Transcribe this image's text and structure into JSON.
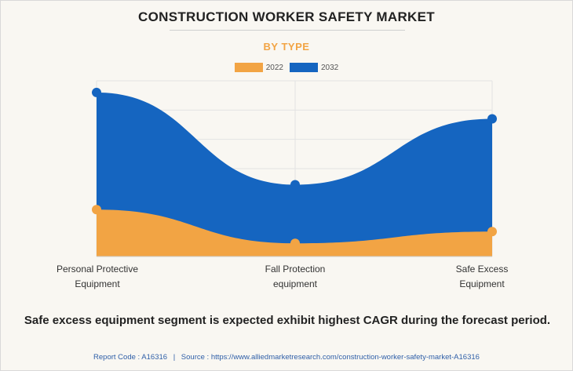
{
  "chart_data": {
    "type": "area",
    "title": "CONSTRUCTION WORKER SAFETY MARKET",
    "subtitle": "BY TYPE",
    "categories": [
      "Personal Protective Equipment",
      "Fall Protection equipment",
      "Safe Excess Equipment"
    ],
    "category_lines": [
      [
        "Personal Protective",
        "Equipment"
      ],
      [
        "Fall Protection",
        "equipment"
      ],
      [
        "Safe Excess",
        "Equipment"
      ]
    ],
    "series": [
      {
        "name": "2022",
        "color": "#f2a444",
        "values": [
          1.6,
          0.45,
          0.85
        ]
      },
      {
        "name": "2032",
        "color": "#1565c0",
        "values": [
          5.6,
          2.45,
          4.7
        ]
      }
    ],
    "ylim": [
      0,
      6
    ],
    "y_gridlines": 6,
    "grid": true,
    "legend_position": "top-center",
    "xlabel": "",
    "ylabel": ""
  },
  "colors": {
    "title_accent": "#f2a444"
  },
  "footer": {
    "note": "Safe excess equipment segment is expected exhibit highest CAGR during the forecast period.",
    "report_code_text": "Report Code : A16316",
    "separator": "|",
    "source_text": "Source : https://www.alliedmarketresearch.com/construction-worker-safety-market-A16316"
  }
}
